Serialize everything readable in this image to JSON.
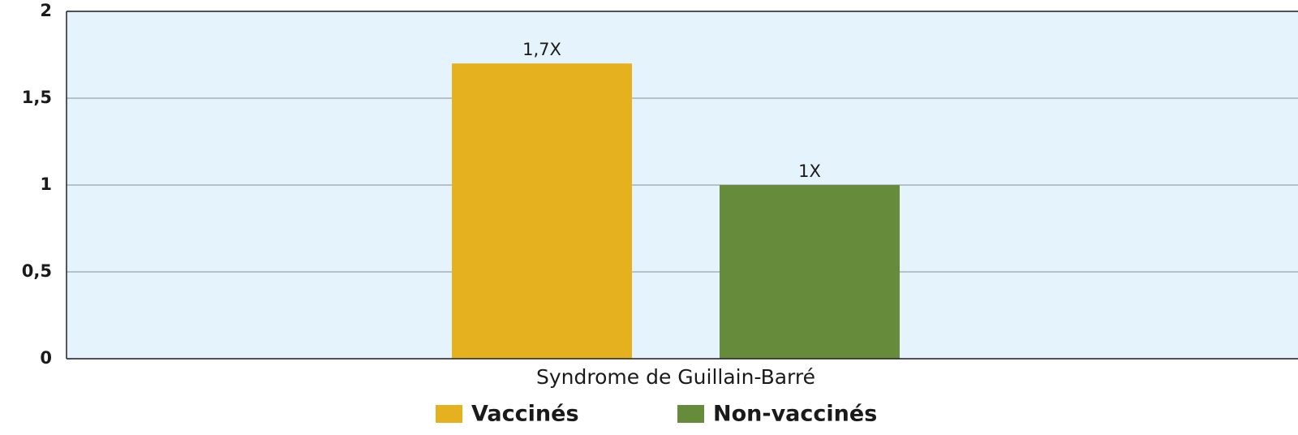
{
  "chart_data": {
    "type": "bar",
    "categories": [
      "Syndrome de Guillain-Barré"
    ],
    "series": [
      {
        "name": "Vaccinés",
        "color": "#e6b11e",
        "values": [
          1.7
        ],
        "value_labels": [
          "1,7X"
        ]
      },
      {
        "name": "Non-vaccinés",
        "color": "#668b3a",
        "values": [
          1
        ],
        "value_labels": [
          "1X"
        ]
      }
    ],
    "ylim": [
      0,
      2
    ],
    "yticks": [
      0,
      {
        "value": 0.5,
        "label": "0,5"
      },
      1,
      {
        "value": 1.5,
        "label": "1,5"
      },
      2
    ],
    "grid": true,
    "legend": "bottom"
  }
}
